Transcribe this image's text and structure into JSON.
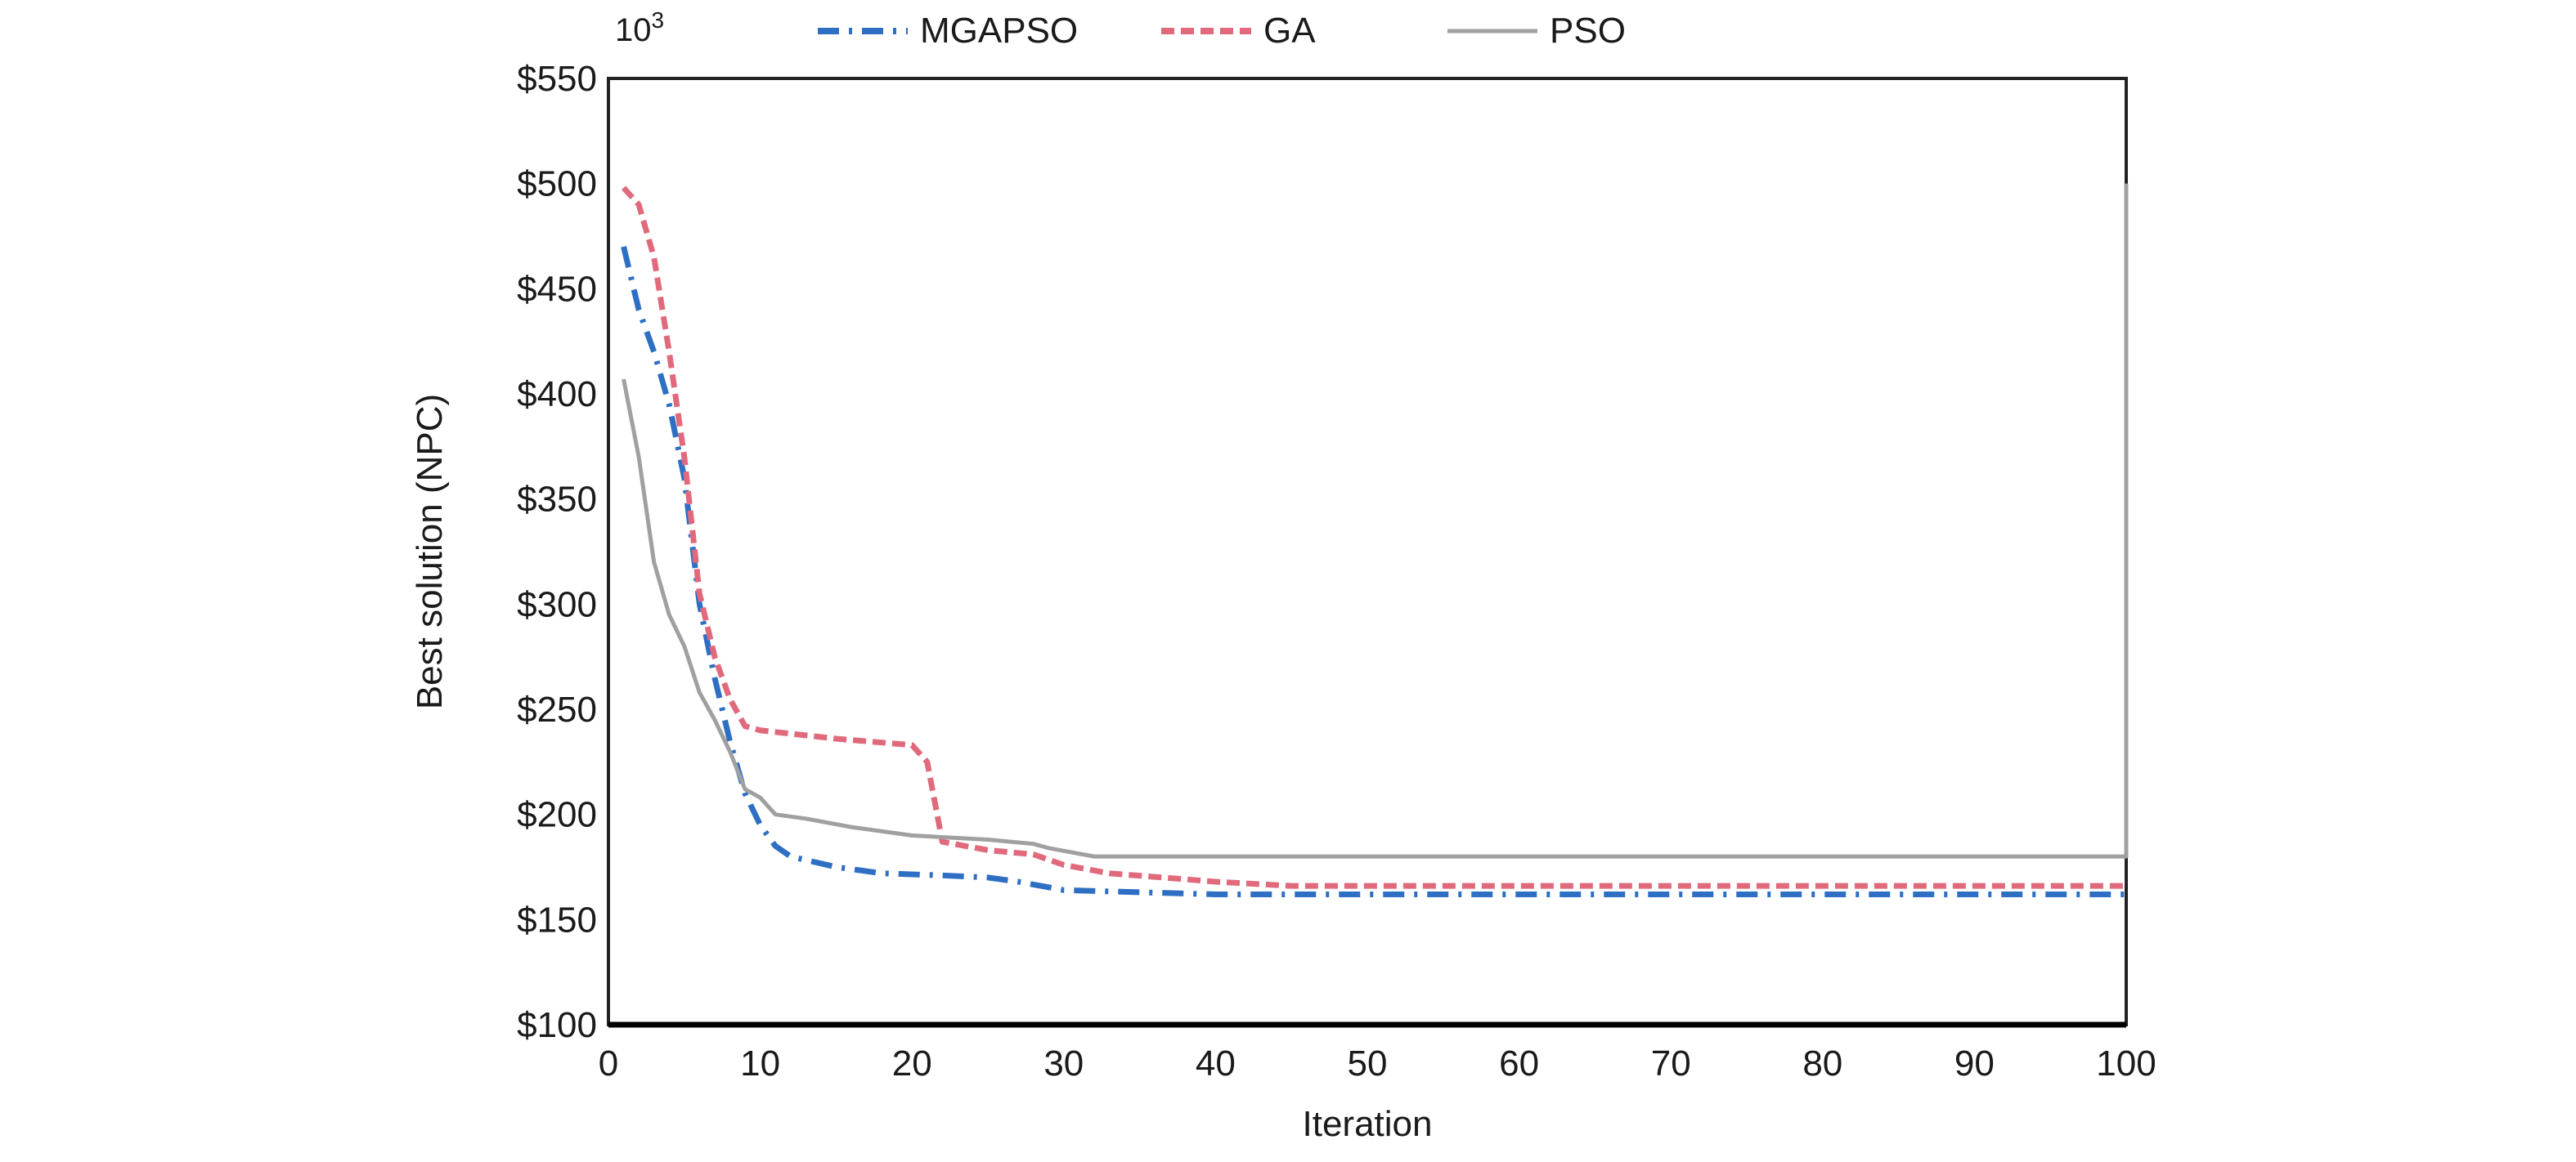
{
  "chart_data": {
    "type": "line",
    "title": "",
    "xlabel": "Iteration",
    "ylabel": "Best solution (NPC)",
    "y_multiplier_label": "10",
    "y_multiplier_exp": "3",
    "xlim": [
      0,
      100
    ],
    "ylim": [
      100,
      550
    ],
    "x_ticks": [
      "0",
      "10",
      "20",
      "30",
      "40",
      "50",
      "60",
      "70",
      "80",
      "90",
      "100"
    ],
    "y_ticks": [
      "$100",
      "$150",
      "$200",
      "$250",
      "$300",
      "$350",
      "$400",
      "$450",
      "$500",
      "$550"
    ],
    "grid": false,
    "legend_position": "top-center",
    "series": [
      {
        "name": "MGAPSO",
        "color": "#2e6fc4",
        "style": "dash-dot",
        "x": [
          1,
          2,
          3,
          4,
          5,
          6,
          7,
          8,
          9,
          10,
          11,
          12,
          15,
          18,
          22,
          25,
          27,
          30,
          35,
          40,
          100
        ],
        "y": [
          470,
          440,
          420,
          395,
          360,
          300,
          265,
          235,
          210,
          195,
          185,
          180,
          175,
          172,
          171,
          170,
          168,
          164,
          163,
          162,
          162
        ]
      },
      {
        "name": "GA",
        "color": "#e06a7c",
        "style": "dashed",
        "x": [
          1,
          2,
          3,
          4,
          5,
          6,
          7,
          8,
          9,
          10,
          15,
          20,
          21,
          22,
          25,
          28,
          30,
          33,
          40,
          45,
          100
        ],
        "y": [
          498,
          490,
          465,
          420,
          370,
          305,
          275,
          255,
          242,
          240,
          236,
          233,
          225,
          187,
          183,
          181,
          176,
          172,
          168,
          166,
          166
        ]
      },
      {
        "name": "PSO",
        "color": "#a0a0a0",
        "style": "solid",
        "x": [
          1,
          2,
          3,
          4,
          5,
          6,
          7,
          8,
          9,
          10,
          11,
          13,
          16,
          20,
          25,
          28,
          29,
          32,
          100,
          100
        ],
        "y": [
          407,
          370,
          320,
          295,
          280,
          258,
          245,
          230,
          212,
          208,
          200,
          198,
          194,
          190,
          188,
          186,
          184,
          180,
          180,
          500
        ]
      }
    ]
  }
}
